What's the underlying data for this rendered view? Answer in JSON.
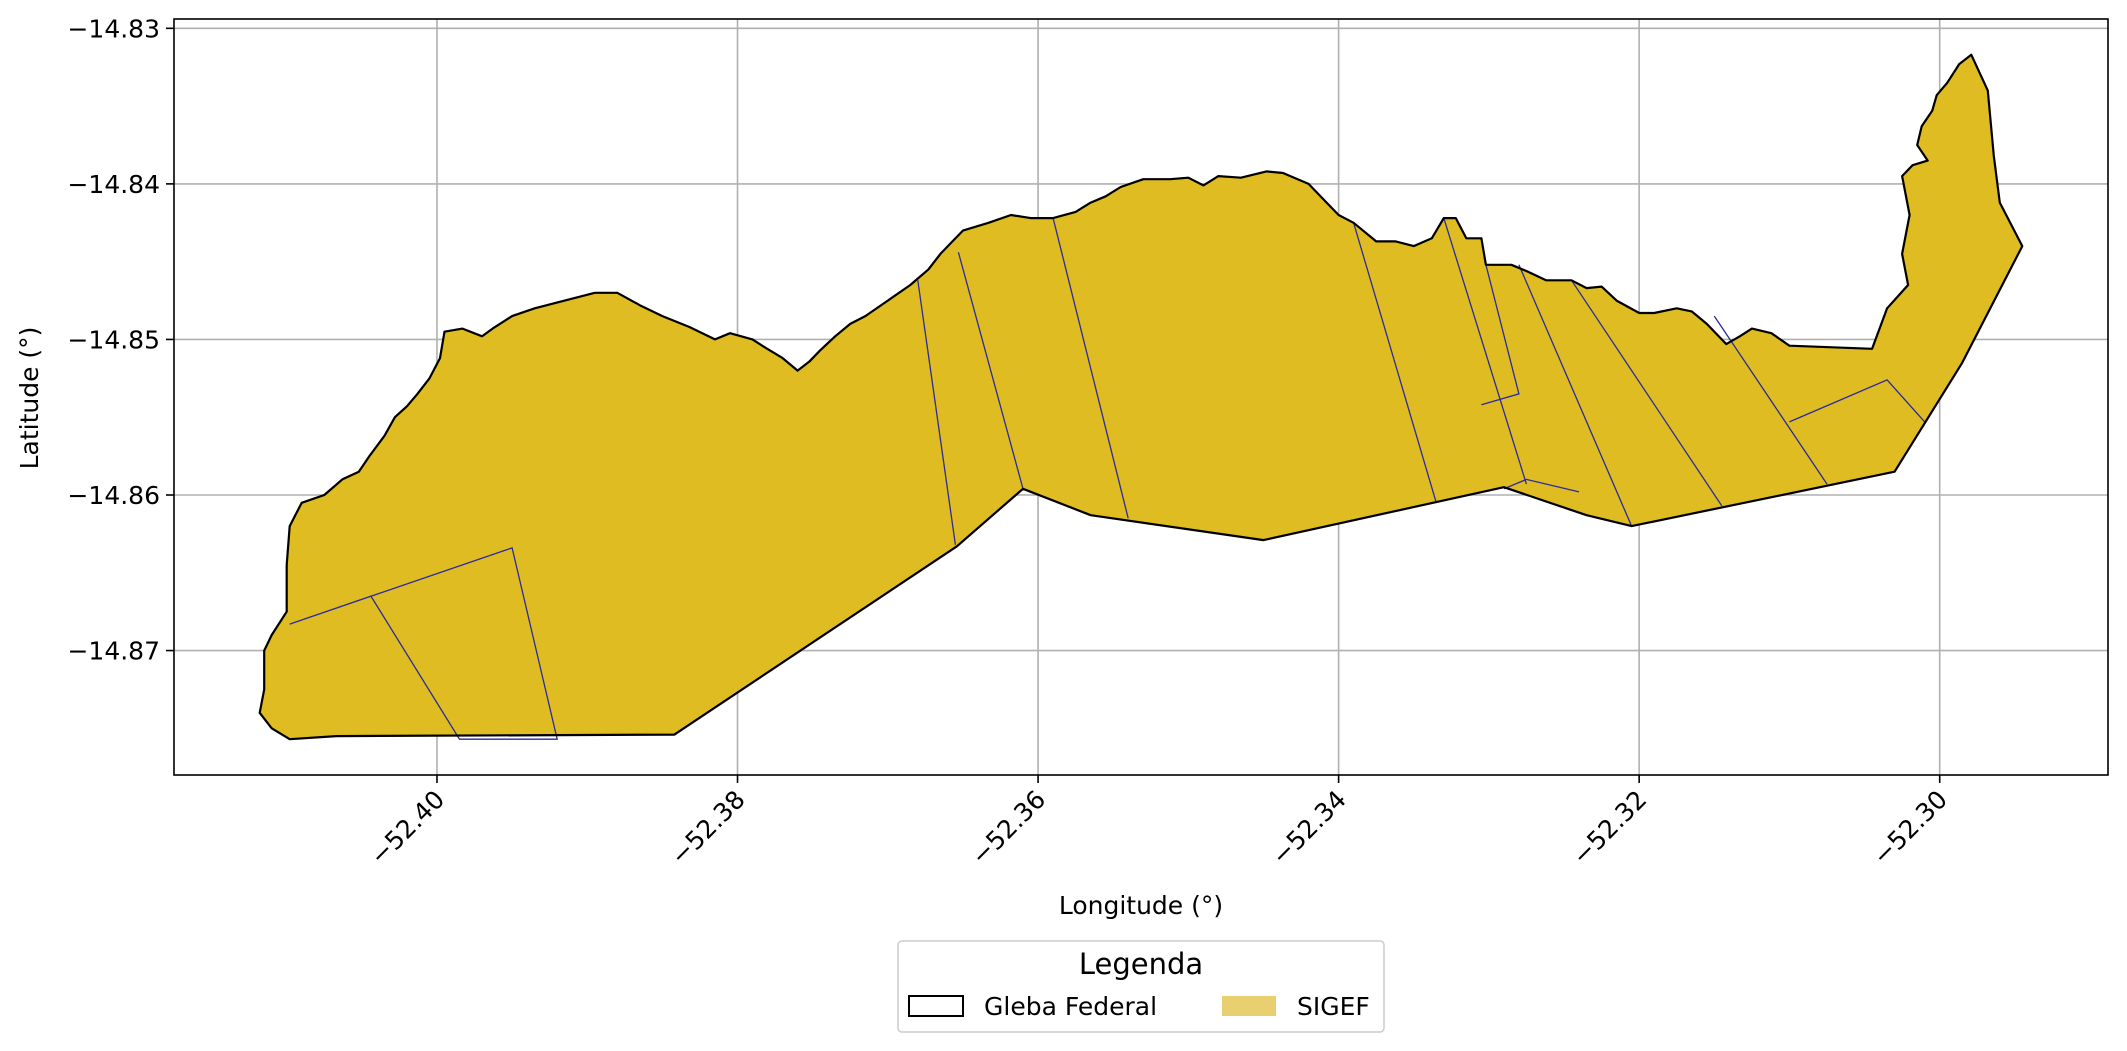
{
  "map": {
    "xlabel": "Longitude (°)",
    "ylabel": "Latitude (°)",
    "x_ticks": [
      {
        "value": -52.4,
        "label": "−52.40"
      },
      {
        "value": -52.38,
        "label": "−52.38"
      },
      {
        "value": -52.36,
        "label": "−52.36"
      },
      {
        "value": -52.34,
        "label": "−52.34"
      },
      {
        "value": -52.32,
        "label": "−52.32"
      },
      {
        "value": -52.3,
        "label": "−52.30"
      }
    ],
    "y_ticks": [
      {
        "value": -14.83,
        "label": "−14.83"
      },
      {
        "value": -14.84,
        "label": "−14.84"
      },
      {
        "value": -14.85,
        "label": "−14.85"
      },
      {
        "value": -14.86,
        "label": "−14.86"
      },
      {
        "value": -14.87,
        "label": "−14.87"
      }
    ],
    "xlim": [
      -52.4175,
      -52.2888
    ],
    "ylim": [
      -14.878,
      -14.8294
    ],
    "grid": true,
    "colors": {
      "gleba_edge": "#000000",
      "sigef_fill": "#dfbd22",
      "sigef_parcel_line": "#2a2a9a",
      "legend_sigef_patch": "#e8d070",
      "grid": "#b0b0b0"
    },
    "legend": {
      "title": "Legenda",
      "placement": "bottom-center",
      "items": [
        {
          "label": "Gleba Federal",
          "style": "outline"
        },
        {
          "label": "SIGEF",
          "style": "fill"
        }
      ]
    },
    "gleba_outline": [
      [
        -52.4098,
        -14.8757
      ],
      [
        -52.4067,
        -14.8755
      ],
      [
        -52.3842,
        -14.8754
      ],
      [
        -52.3654,
        -14.8633
      ],
      [
        -52.361,
        -14.8596
      ],
      [
        -52.3565,
        -14.8613
      ],
      [
        -52.345,
        -14.8629
      ],
      [
        -52.329,
        -14.8595
      ],
      [
        -52.3235,
        -14.8613
      ],
      [
        -52.3205,
        -14.862
      ],
      [
        -52.313,
        -14.8605
      ],
      [
        -52.303,
        -14.8585
      ],
      [
        -52.2985,
        -14.8515
      ],
      [
        -52.2945,
        -14.844
      ],
      [
        -52.296,
        -14.8412
      ],
      [
        -52.2964,
        -14.8382
      ],
      [
        -52.2968,
        -14.834
      ],
      [
        -52.2979,
        -14.8317
      ],
      [
        -52.2987,
        -14.8323
      ],
      [
        -52.2995,
        -14.8335
      ],
      [
        -52.3002,
        -14.8343
      ],
      [
        -52.3005,
        -14.8353
      ],
      [
        -52.3012,
        -14.8363
      ],
      [
        -52.3015,
        -14.8375
      ],
      [
        -52.3008,
        -14.8385
      ],
      [
        -52.3018,
        -14.8388
      ],
      [
        -52.3025,
        -14.8395
      ],
      [
        -52.302,
        -14.842
      ],
      [
        -52.3025,
        -14.8445
      ],
      [
        -52.3021,
        -14.8465
      ],
      [
        -52.3035,
        -14.848
      ],
      [
        -52.3045,
        -14.8506
      ],
      [
        -52.31,
        -14.8504
      ],
      [
        -52.3112,
        -14.8496
      ],
      [
        -52.3125,
        -14.8493
      ],
      [
        -52.3133,
        -14.8498
      ],
      [
        -52.3142,
        -14.8503
      ],
      [
        -52.3155,
        -14.849
      ],
      [
        -52.3165,
        -14.8482
      ],
      [
        -52.3175,
        -14.848
      ],
      [
        -52.319,
        -14.8483
      ],
      [
        -52.32,
        -14.8483
      ],
      [
        -52.3215,
        -14.8475
      ],
      [
        -52.3225,
        -14.8466
      ],
      [
        -52.3235,
        -14.8467
      ],
      [
        -52.3245,
        -14.8462
      ],
      [
        -52.3262,
        -14.8462
      ],
      [
        -52.3275,
        -14.8456
      ],
      [
        -52.3285,
        -14.8452
      ],
      [
        -52.3302,
        -14.8452
      ],
      [
        -52.3305,
        -14.8435
      ],
      [
        -52.3315,
        -14.8435
      ],
      [
        -52.3322,
        -14.8422
      ],
      [
        -52.333,
        -14.8422
      ],
      [
        -52.3338,
        -14.8435
      ],
      [
        -52.335,
        -14.844
      ],
      [
        -52.3362,
        -14.8437
      ],
      [
        -52.3375,
        -14.8437
      ],
      [
        -52.339,
        -14.8425
      ],
      [
        -52.34,
        -14.842
      ],
      [
        -52.3408,
        -14.8412
      ],
      [
        -52.342,
        -14.84
      ],
      [
        -52.3437,
        -14.8393
      ],
      [
        -52.3448,
        -14.8392
      ],
      [
        -52.3465,
        -14.8396
      ],
      [
        -52.348,
        -14.8395
      ],
      [
        -52.349,
        -14.8401
      ],
      [
        -52.35,
        -14.8396
      ],
      [
        -52.3512,
        -14.8397
      ],
      [
        -52.353,
        -14.8397
      ],
      [
        -52.3545,
        -14.8402
      ],
      [
        -52.3555,
        -14.8408
      ],
      [
        -52.3565,
        -14.8412
      ],
      [
        -52.3575,
        -14.8418
      ],
      [
        -52.359,
        -14.8422
      ],
      [
        -52.3605,
        -14.8422
      ],
      [
        -52.3618,
        -14.842
      ],
      [
        -52.3633,
        -14.8425
      ],
      [
        -52.365,
        -14.843
      ],
      [
        -52.3658,
        -14.8438
      ],
      [
        -52.3665,
        -14.8445
      ],
      [
        -52.3673,
        -14.8455
      ],
      [
        -52.3685,
        -14.8465
      ],
      [
        -52.37,
        -14.8475
      ],
      [
        -52.3715,
        -14.8485
      ],
      [
        -52.3725,
        -14.849
      ],
      [
        -52.3735,
        -14.8498
      ],
      [
        -52.3745,
        -14.8507
      ],
      [
        -52.3752,
        -14.8514
      ],
      [
        -52.376,
        -14.852
      ],
      [
        -52.377,
        -14.8512
      ],
      [
        -52.3782,
        -14.8505
      ],
      [
        -52.379,
        -14.85
      ],
      [
        -52.3805,
        -14.8496
      ],
      [
        -52.3815,
        -14.85
      ],
      [
        -52.3832,
        -14.8492
      ],
      [
        -52.385,
        -14.8485
      ],
      [
        -52.3865,
        -14.8478
      ],
      [
        -52.388,
        -14.847
      ],
      [
        -52.3895,
        -14.847
      ],
      [
        -52.3915,
        -14.8475
      ],
      [
        -52.3935,
        -14.848
      ],
      [
        -52.395,
        -14.8485
      ],
      [
        -52.3963,
        -14.8493
      ],
      [
        -52.397,
        -14.8498
      ],
      [
        -52.3983,
        -14.8493
      ],
      [
        -52.3995,
        -14.8495
      ],
      [
        -52.3998,
        -14.8512
      ],
      [
        -52.4005,
        -14.8525
      ],
      [
        -52.4013,
        -14.8535
      ],
      [
        -52.402,
        -14.8543
      ],
      [
        -52.4028,
        -14.855
      ],
      [
        -52.4035,
        -14.8562
      ],
      [
        -52.4045,
        -14.8575
      ],
      [
        -52.4052,
        -14.8585
      ],
      [
        -52.4063,
        -14.859
      ],
      [
        -52.4075,
        -14.86
      ],
      [
        -52.409,
        -14.8605
      ],
      [
        -52.4098,
        -14.862
      ],
      [
        -52.41,
        -14.8645
      ],
      [
        -52.41,
        -14.8675
      ],
      [
        -52.411,
        -14.869
      ],
      [
        -52.4115,
        -14.87
      ],
      [
        -52.4115,
        -14.8725
      ],
      [
        -52.4118,
        -14.874
      ],
      [
        -52.411,
        -14.875
      ],
      [
        -52.4098,
        -14.8757
      ]
    ],
    "sigef_parcels": [
      [
        [
          -52.4098,
          -14.8683
        ],
        [
          -52.395,
          -14.8634
        ],
        [
          -52.392,
          -14.8757
        ],
        [
          -52.3985,
          -14.8757
        ],
        [
          -52.4044,
          -14.8665
        ],
        [
          -52.4098,
          -14.8683
        ]
      ],
      [
        [
          -52.368,
          -14.8462
        ],
        [
          -52.3655,
          -14.8632
        ]
      ],
      [
        [
          -52.3653,
          -14.8444
        ],
        [
          -52.361,
          -14.8596
        ]
      ],
      [
        [
          -52.359,
          -14.8422
        ],
        [
          -52.354,
          -14.8615
        ]
      ],
      [
        [
          -52.339,
          -14.8425
        ],
        [
          -52.3335,
          -14.8605
        ]
      ],
      [
        [
          -52.333,
          -14.8422
        ],
        [
          -52.3275,
          -14.8593
        ]
      ],
      [
        [
          -52.3302,
          -14.8452
        ],
        [
          -52.328,
          -14.8535
        ],
        [
          -52.3305,
          -14.8542
        ]
      ],
      [
        [
          -52.328,
          -14.8452
        ],
        [
          -52.3205,
          -14.862
        ]
      ],
      [
        [
          -52.3245,
          -14.8462
        ],
        [
          -52.3145,
          -14.8607
        ]
      ],
      [
        [
          -52.315,
          -14.8485
        ],
        [
          -52.3075,
          -14.8593
        ]
      ],
      [
        [
          -52.31,
          -14.8553
        ],
        [
          -52.3035,
          -14.8526
        ],
        [
          -52.301,
          -14.8553
        ]
      ],
      [
        [
          -52.329,
          -14.8596
        ],
        [
          -52.3275,
          -14.859
        ],
        [
          -52.324,
          -14.8598
        ]
      ]
    ]
  }
}
